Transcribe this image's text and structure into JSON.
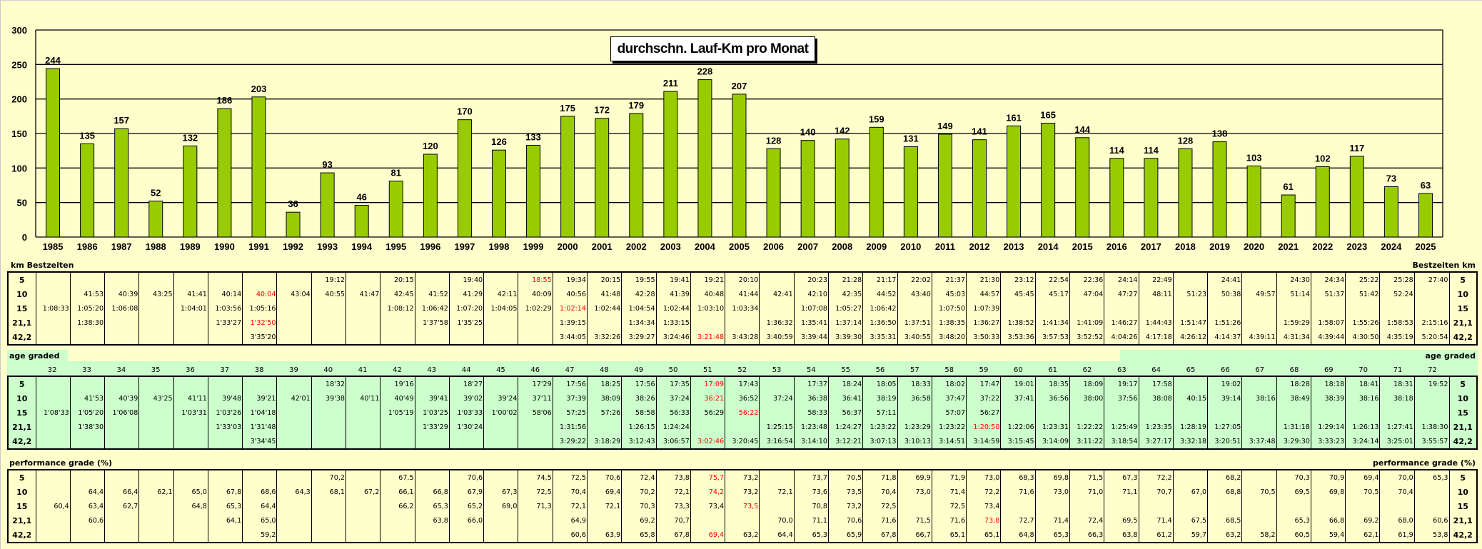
{
  "chart_data": {
    "type": "bar",
    "title": "durchschn. Lauf-Km pro Monat",
    "xlabel": "",
    "ylabel": "",
    "ylim": [
      0,
      300
    ],
    "yticks": [
      0,
      50,
      100,
      150,
      200,
      250,
      300
    ],
    "grid": true,
    "categories": [
      "1985",
      "1986",
      "1987",
      "1988",
      "1989",
      "1990",
      "1991",
      "1992",
      "1993",
      "1994",
      "1995",
      "1996",
      "1997",
      "1998",
      "1999",
      "2000",
      "2001",
      "2002",
      "2003",
      "2004",
      "2005",
      "2006",
      "2007",
      "2008",
      "2009",
      "2010",
      "2011",
      "2012",
      "2013",
      "2014",
      "2015",
      "2016",
      "2017",
      "2018",
      "2019",
      "2020",
      "2021",
      "2022",
      "2023",
      "2024",
      "2025"
    ],
    "values": [
      244,
      135,
      157,
      52,
      132,
      186,
      203,
      36,
      93,
      46,
      81,
      120,
      170,
      126,
      133,
      175,
      172,
      179,
      211,
      228,
      207,
      128,
      140,
      142,
      159,
      131,
      149,
      141,
      161,
      165,
      144,
      114,
      114,
      128,
      138,
      103,
      61,
      102,
      117,
      73,
      63
    ],
    "bar_color": "#99CC00"
  },
  "distances": [
    "5",
    "10",
    "15",
    "21,1",
    "42,2"
  ],
  "colors": {
    "background": "#FFFFCC",
    "age_band": "#CCFFCC",
    "record": "#FF0000"
  },
  "bestzeiten": {
    "label_left": "km Bestzeiten",
    "label_right": "Bestzeiten km",
    "columns": [
      [
        "",
        "",
        "1:08:33",
        "",
        ""
      ],
      [
        "",
        "41:53",
        "1:05:20",
        "1:38:30",
        ""
      ],
      [
        "",
        "40:39",
        "1:06:08",
        "",
        ""
      ],
      [
        "",
        "43:25",
        "",
        "",
        ""
      ],
      [
        "",
        "41:41",
        "1:04:01",
        "",
        ""
      ],
      [
        "",
        "40:14",
        "1:03:56",
        "1'33'27",
        ""
      ],
      [
        "",
        "40:04",
        "1:05:16",
        "1'32'50",
        "3'35'20"
      ],
      [
        "",
        "43:04",
        "",
        "",
        ""
      ],
      [
        "19:12",
        "40:55",
        "",
        "",
        ""
      ],
      [
        "",
        "41:47",
        "",
        "",
        ""
      ],
      [
        "20:15",
        "42:45",
        "1:08:12",
        "",
        ""
      ],
      [
        "",
        "41:52",
        "1:06:42",
        "1'37'58",
        ""
      ],
      [
        "19:40",
        "41:29",
        "1:07:20",
        "1'35'25",
        ""
      ],
      [
        "",
        "42:11",
        "1:04:05",
        "",
        ""
      ],
      [
        "18:55",
        "40:09",
        "1:02:29",
        "",
        ""
      ],
      [
        "19:34",
        "40:56",
        "1:02:14",
        "1:39:15",
        "3:44:05"
      ],
      [
        "20:15",
        "41:48",
        "1:02:44",
        "",
        "3:32:26"
      ],
      [
        "19:55",
        "42:28",
        "1:04:54",
        "1:34:34",
        "3:29:27"
      ],
      [
        "19:41",
        "41:39",
        "1:02:44",
        "1:33:15",
        "3:24:46"
      ],
      [
        "19:21",
        "40:48",
        "1:03:10",
        "",
        "3:21:48"
      ],
      [
        "20:10",
        "41:44",
        "1:03:34",
        "",
        "3:43:28"
      ],
      [
        "",
        "42:41",
        "",
        "1:36:32",
        "3:40:59"
      ],
      [
        "20:23",
        "42:10",
        "1:07:08",
        "1:35:41",
        "3:39:44"
      ],
      [
        "21:28",
        "42:35",
        "1:05:27",
        "1:37:14",
        "3:39:30"
      ],
      [
        "21:17",
        "44:52",
        "1:06:42",
        "1:36:50",
        "3:35:31"
      ],
      [
        "22:02",
        "43:40",
        "",
        "1:37:51",
        "3:40:55"
      ],
      [
        "21:37",
        "45:03",
        "1:07:50",
        "1:38:35",
        "3:48:20"
      ],
      [
        "21:30",
        "44:57",
        "1:07:39",
        "1:36:27",
        "3:50:33"
      ],
      [
        "23:12",
        "45:45",
        "",
        "1:38:52",
        "3:53:36"
      ],
      [
        "22:54",
        "45:17",
        "",
        "1:41:34",
        "3:57:53"
      ],
      [
        "22:36",
        "47:04",
        "",
        "1:41:09",
        "3:52:52"
      ],
      [
        "24:14",
        "47:27",
        "",
        "1:46:27",
        "4:04:26"
      ],
      [
        "22:49",
        "48:11",
        "",
        "1:44:43",
        "4:17:18"
      ],
      [
        "",
        "51:23",
        "",
        "1:51:47",
        "4:26:12"
      ],
      [
        "24:41",
        "50:38",
        "",
        "1:51:26",
        "4:14:37"
      ],
      [
        "",
        "49:57",
        "",
        "",
        "4:39:11"
      ],
      [
        "24:30",
        "51:14",
        "",
        "1:59:29",
        "4:31:34"
      ],
      [
        "24:34",
        "51:37",
        "",
        "1:58:07",
        "4:39:44"
      ],
      [
        "25:22",
        "51:42",
        "",
        "1:55:26",
        "4:30:50"
      ],
      [
        "25:28",
        "52:24",
        "",
        "1:58:53",
        "4:35:19"
      ],
      [
        "27:40",
        "",
        "",
        "2:15:16",
        "5:20:54"
      ]
    ],
    "red_cells": [
      [
        6,
        1
      ],
      [
        6,
        3
      ],
      [
        14,
        0
      ],
      [
        15,
        2
      ],
      [
        19,
        4
      ]
    ]
  },
  "age_graded": {
    "label": "age graded",
    "ages": [
      "32",
      "33",
      "34",
      "35",
      "36",
      "37",
      "38",
      "39",
      "40",
      "41",
      "42",
      "43",
      "44",
      "45",
      "46",
      "47",
      "48",
      "49",
      "50",
      "51",
      "52",
      "53",
      "54",
      "55",
      "56",
      "57",
      "58",
      "59",
      "60",
      "61",
      "62",
      "63",
      "64",
      "65",
      "66",
      "67",
      "68",
      "69",
      "70",
      "71",
      "72"
    ],
    "columns": [
      [
        "",
        "",
        "1'08'33",
        "",
        ""
      ],
      [
        "",
        "41'53",
        "1'05'20",
        "1'38'30",
        ""
      ],
      [
        "",
        "40'39",
        "1'06'08",
        "",
        ""
      ],
      [
        "",
        "43'25",
        "",
        "",
        ""
      ],
      [
        "",
        "41'11",
        "1'03'31",
        "",
        ""
      ],
      [
        "",
        "39'48",
        "1'03'26",
        "1'33'03",
        ""
      ],
      [
        "",
        "39'21",
        "1'04'18",
        "1'31'48",
        "3'34'45"
      ],
      [
        "",
        "42'01",
        "",
        "",
        ""
      ],
      [
        "18'32",
        "39'38",
        "",
        "",
        ""
      ],
      [
        "",
        "40'11",
        "",
        "",
        ""
      ],
      [
        "19'16",
        "40'49",
        "1'05'19",
        "",
        ""
      ],
      [
        "",
        "39'41",
        "1'03'25",
        "1'33'29",
        ""
      ],
      [
        "18'27",
        "39'02",
        "1'03'33",
        "1'30'24",
        ""
      ],
      [
        "",
        "39'24",
        "1'00'02",
        "",
        ""
      ],
      [
        "17'29",
        "37'11",
        "58'06",
        "",
        ""
      ],
      [
        "17:56",
        "37:39",
        "57:25",
        "1:31:56",
        "3:29:22"
      ],
      [
        "18:25",
        "38:09",
        "57:26",
        "",
        "3:18:29"
      ],
      [
        "17:56",
        "38:26",
        "58:58",
        "1:26:15",
        "3:12:43"
      ],
      [
        "17:35",
        "37:24",
        "56:33",
        "1:24:24",
        "3:06:57"
      ],
      [
        "17:09",
        "36:21",
        "56:29",
        "",
        "3:02:46"
      ],
      [
        "17:43",
        "36:52",
        "56:22",
        "",
        "3:20:45"
      ],
      [
        "",
        "37:24",
        "",
        "1:25:15",
        "3:16:54"
      ],
      [
        "17:37",
        "36:38",
        "58:33",
        "1:23:48",
        "3:14:10"
      ],
      [
        "18:24",
        "36:41",
        "56:37",
        "1:24:27",
        "3:12:21"
      ],
      [
        "18:05",
        "38:19",
        "57:11",
        "1:23:22",
        "3:07:13"
      ],
      [
        "18:33",
        "36:58",
        "",
        "1:23:29",
        "3:10:13"
      ],
      [
        "18:02",
        "37:47",
        "57:07",
        "1:23:22",
        "3:14:51"
      ],
      [
        "17:47",
        "37:22",
        "56:27",
        "1:20:50",
        "3:14:59"
      ],
      [
        "19:01",
        "37:41",
        "",
        "1:22:06",
        "3:15:45"
      ],
      [
        "18:35",
        "36:56",
        "",
        "1:23:31",
        "3:14:09"
      ],
      [
        "18:09",
        "38:00",
        "",
        "1:22:22",
        "3:11:22"
      ],
      [
        "19:17",
        "37:56",
        "",
        "1:25:49",
        "3:18:54"
      ],
      [
        "17:58",
        "38:08",
        "",
        "1:23:35",
        "3:27:17"
      ],
      [
        "",
        "40:15",
        "",
        "1:28:19",
        "3:32:18"
      ],
      [
        "19:02",
        "39:14",
        "",
        "1:27:05",
        "3:20:51"
      ],
      [
        "",
        "38:16",
        "",
        "",
        "3:37:48"
      ],
      [
        "18:28",
        "38:49",
        "",
        "1:31:18",
        "3:29:30"
      ],
      [
        "18:18",
        "38:39",
        "",
        "1:29:14",
        "3:33:23"
      ],
      [
        "18:41",
        "38:16",
        "",
        "1:26:13",
        "3:24:14"
      ],
      [
        "18:31",
        "38:18",
        "",
        "1:27:41",
        "3:25:01"
      ],
      [
        "19:52",
        "",
        "",
        "1:38:30",
        "3:55:57"
      ]
    ],
    "red_cells": [
      [
        19,
        0
      ],
      [
        19,
        1
      ],
      [
        20,
        2
      ],
      [
        19,
        4
      ],
      [
        27,
        3
      ]
    ]
  },
  "performance": {
    "label": "performance grade (%)",
    "columns": [
      [
        "",
        "",
        "60,4",
        "",
        ""
      ],
      [
        "",
        "64,4",
        "63,4",
        "60,6",
        ""
      ],
      [
        "",
        "66,4",
        "62,7",
        "",
        ""
      ],
      [
        "",
        "62,1",
        "",
        "",
        ""
      ],
      [
        "",
        "65,0",
        "64,8",
        "",
        ""
      ],
      [
        "",
        "67,8",
        "65,3",
        "64,1",
        ""
      ],
      [
        "",
        "68,6",
        "64,4",
        "65,0",
        "59,2"
      ],
      [
        "",
        "64,3",
        "",
        "",
        ""
      ],
      [
        "70,2",
        "68,1",
        "",
        "",
        ""
      ],
      [
        "",
        "67,2",
        "",
        "",
        ""
      ],
      [
        "67,5",
        "66,1",
        "66,2",
        "",
        ""
      ],
      [
        "",
        "66,8",
        "65,3",
        "63,8",
        ""
      ],
      [
        "70,6",
        "67,9",
        "65,2",
        "66,0",
        ""
      ],
      [
        "",
        "67,3",
        "69,0",
        "",
        ""
      ],
      [
        "74,5",
        "72,5",
        "71,3",
        "",
        ""
      ],
      [
        "72,5",
        "70,4",
        "72,1",
        "64,9",
        "60,6"
      ],
      [
        "70,6",
        "69,4",
        "72,1",
        "",
        "63,9"
      ],
      [
        "72,4",
        "70,2",
        "70,3",
        "69,2",
        "65,8"
      ],
      [
        "73,8",
        "72,1",
        "73,3",
        "70,7",
        "67,8"
      ],
      [
        "75,7",
        "74,2",
        "73,4",
        "",
        "69,4"
      ],
      [
        "73,2",
        "73,2",
        "73,5",
        "",
        "63,2"
      ],
      [
        "",
        "72,1",
        "",
        "70,0",
        "64,4"
      ],
      [
        "73,7",
        "73,6",
        "70,8",
        "71,1",
        "65,3"
      ],
      [
        "70,5",
        "73,5",
        "73,2",
        "70,6",
        "65,9"
      ],
      [
        "71,8",
        "70,4",
        "72,5",
        "71,6",
        "67,8"
      ],
      [
        "69,9",
        "73,0",
        "",
        "71,5",
        "66,7"
      ],
      [
        "71,9",
        "71,4",
        "72,5",
        "71,6",
        "65,1"
      ],
      [
        "73,0",
        "72,2",
        "73,4",
        "73,8",
        "65,1"
      ],
      [
        "68,3",
        "71,6",
        "",
        "72,7",
        "64,8"
      ],
      [
        "69,8",
        "73,0",
        "",
        "71,4",
        "65,3"
      ],
      [
        "71,5",
        "71,0",
        "",
        "72,4",
        "66,3"
      ],
      [
        "67,3",
        "71,1",
        "",
        "69,5",
        "63,8"
      ],
      [
        "72,2",
        "70,7",
        "",
        "71,4",
        "61,2"
      ],
      [
        "",
        "67,0",
        "",
        "67,5",
        "59,7"
      ],
      [
        "68,2",
        "68,8",
        "",
        "68,5",
        "63,2"
      ],
      [
        "",
        "70,5",
        "",
        "",
        "58,2"
      ],
      [
        "70,3",
        "69,5",
        "",
        "65,3",
        "60,5"
      ],
      [
        "70,9",
        "69,8",
        "",
        "66,8",
        "59,4"
      ],
      [
        "69,4",
        "70,5",
        "",
        "69,2",
        "62,1"
      ],
      [
        "70,0",
        "70,4",
        "",
        "68,0",
        "61,9"
      ],
      [
        "65,3",
        "",
        "",
        "60,6",
        "53,8"
      ]
    ],
    "red_cells": [
      [
        19,
        0
      ],
      [
        19,
        1
      ],
      [
        20,
        2
      ],
      [
        19,
        4
      ],
      [
        27,
        3
      ]
    ]
  }
}
